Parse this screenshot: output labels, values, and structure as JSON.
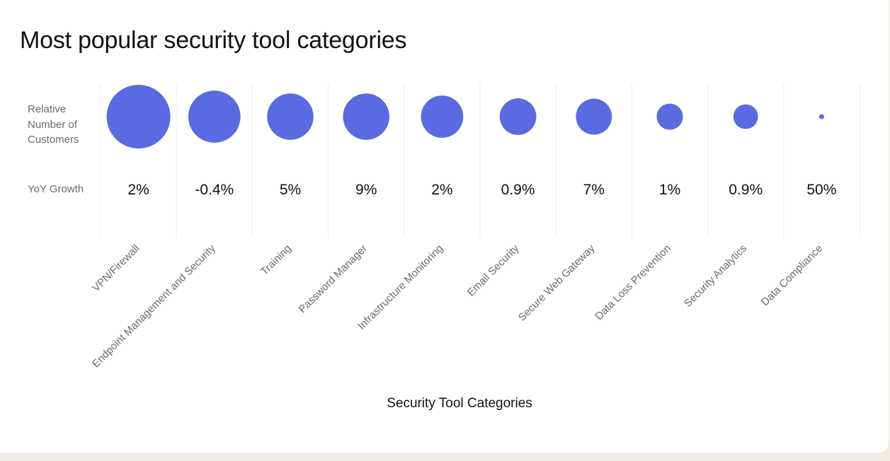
{
  "header": {
    "title": "Most popular security tool categories"
  },
  "colors": {
    "bubble": "#5a6ae0",
    "gridline": "#ebebeb",
    "text_dark": "#111111",
    "text_muted": "#6b6b6b",
    "background": "#efece6",
    "card": "#ffffff"
  },
  "chart_data": {
    "type": "bubble",
    "title": "Most popular security tool categories",
    "xlabel": "Security Tool Categories",
    "row_labels": {
      "bubbles": "Relative Number of Customers",
      "growth": "YoY Growth"
    },
    "categories": [
      "VPN/Firewall",
      "Endpoint Management and Security",
      "Training",
      "Password Manager",
      "Infrastructure Monitoring",
      "Email Security",
      "Secure Web Gateway",
      "Data Loss Prevention",
      "Security Analytics",
      "Data Compliance"
    ],
    "relative_customers": [
      1.0,
      0.67,
      0.53,
      0.53,
      0.44,
      0.33,
      0.32,
      0.17,
      0.15,
      0.005
    ],
    "yoy_growth_labels": [
      "2%",
      "-0.4%",
      "5%",
      "9%",
      "2%",
      "0.9%",
      "7%",
      "1%",
      "0.9%",
      "50%"
    ],
    "yoy_growth_values": [
      2,
      -0.4,
      5,
      9,
      2,
      0.9,
      7,
      1,
      0.9,
      50
    ],
    "grid": true
  }
}
